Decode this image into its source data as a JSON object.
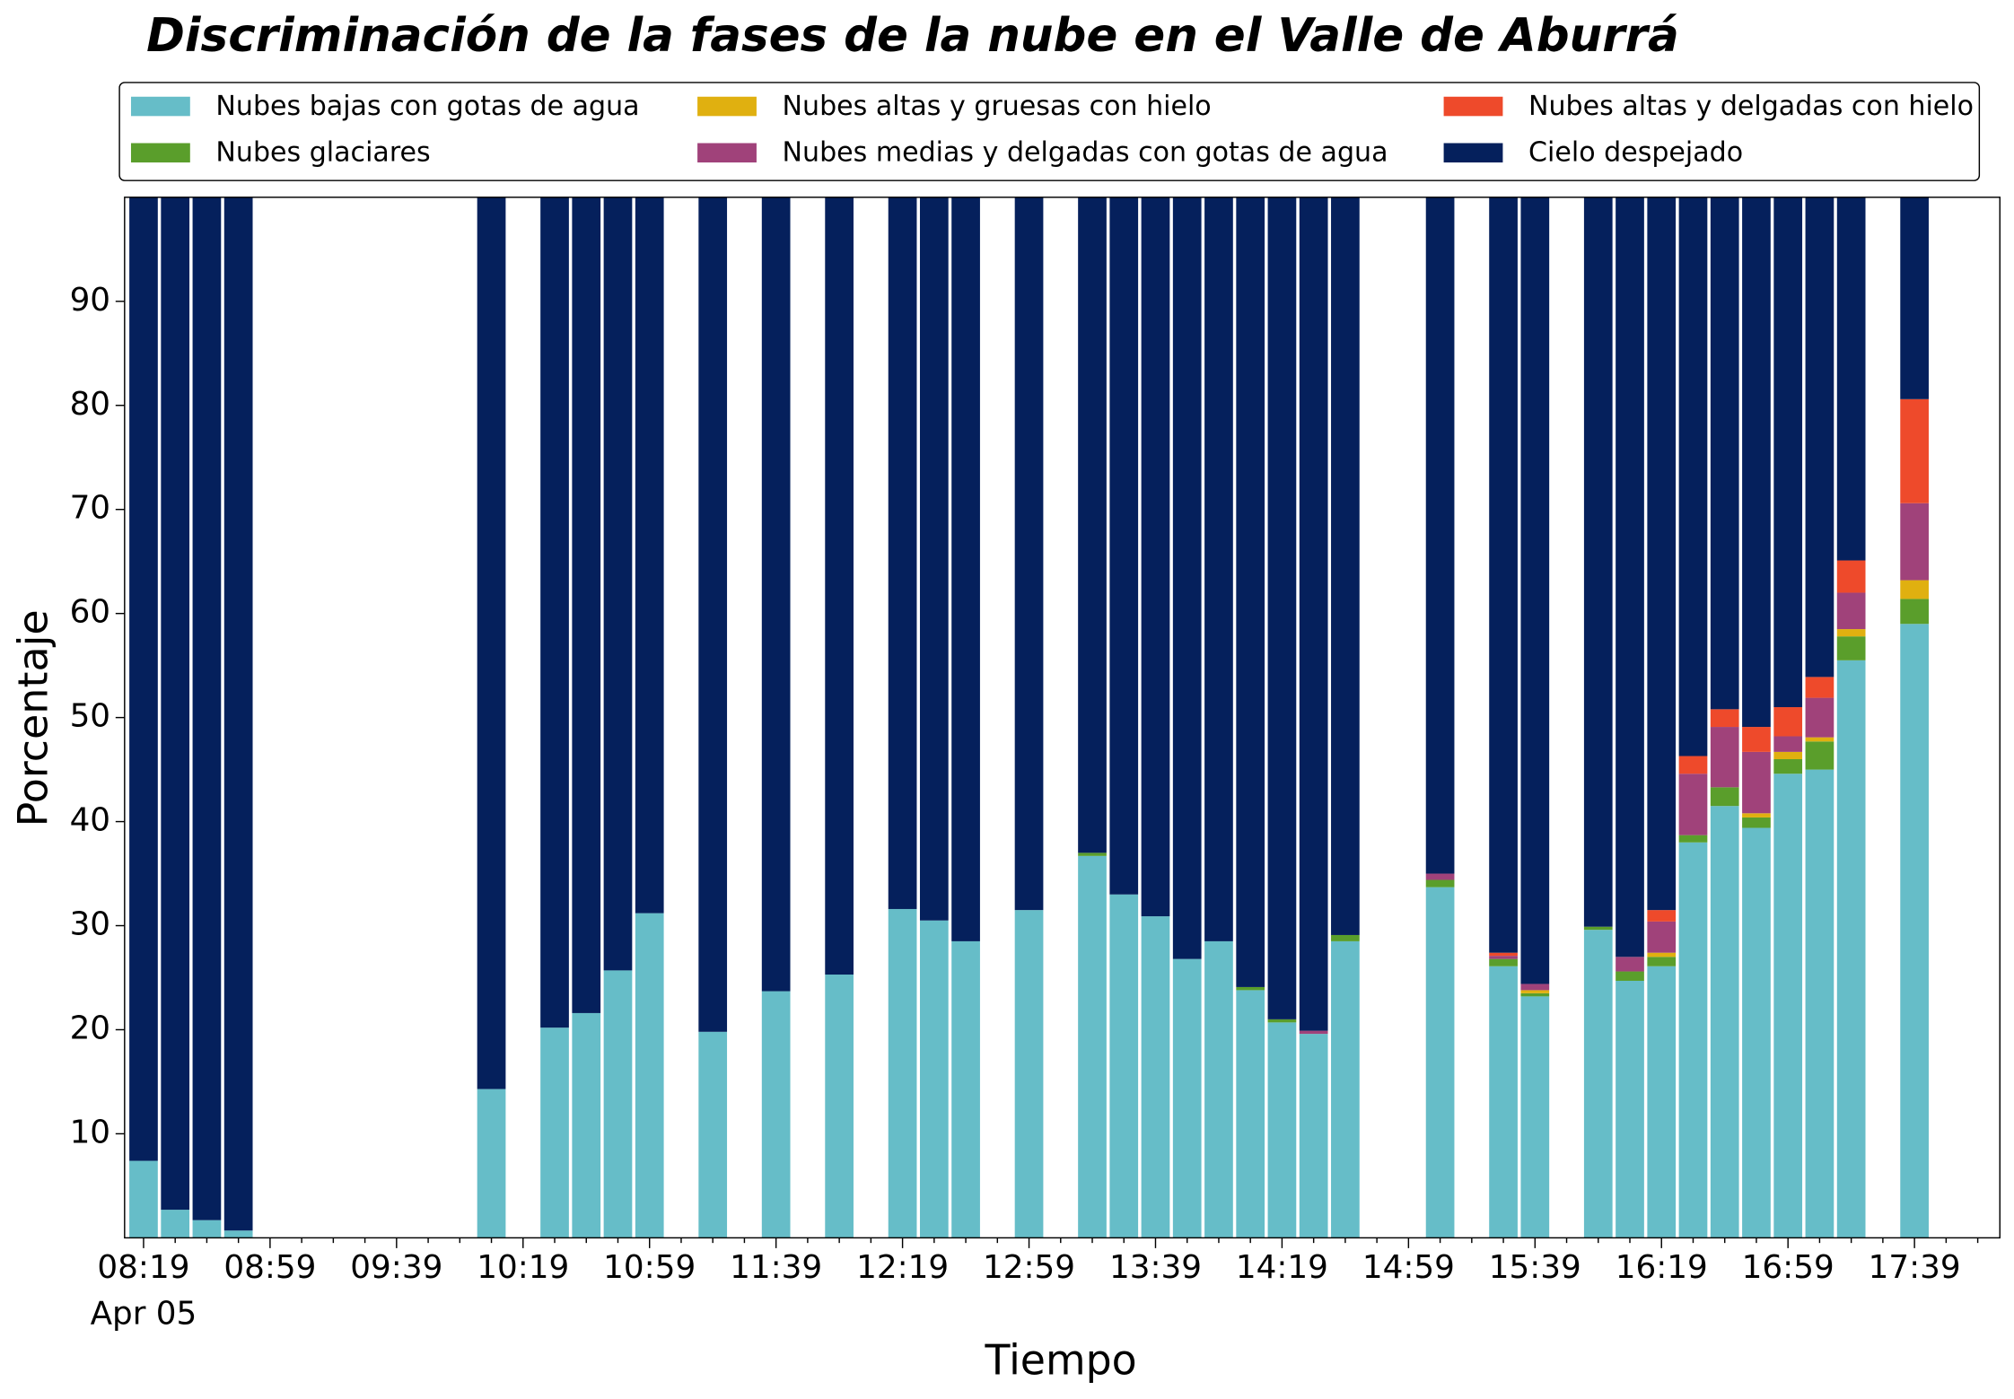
{
  "chart_data": {
    "type": "stacked_bar",
    "title": "Discriminación de la fases de la nube en el Valle de Aburrá",
    "xlabel": "Tiempo",
    "ylabel": "Porcentaje",
    "x": [
      "08:19",
      "08:29",
      "08:39",
      "08:49",
      "10:09",
      "10:29",
      "10:39",
      "10:49",
      "10:59",
      "11:19",
      "11:39",
      "11:59",
      "12:19",
      "12:29",
      "12:39",
      "12:59",
      "13:19",
      "13:29",
      "13:39",
      "13:49",
      "13:59",
      "14:09",
      "14:19",
      "14:29",
      "14:39",
      "15:09",
      "15:29",
      "15:39",
      "15:59",
      "16:09",
      "16:19",
      "16:29",
      "16:39",
      "16:49",
      "16:59",
      "17:09",
      "17:19",
      "17:39"
    ],
    "series": [
      {
        "name": "Nubes bajas con gotas de agua",
        "color": "#66bdc8",
        "values": [
          7.4,
          2.7,
          1.7,
          0.7,
          14.3,
          20.2,
          21.6,
          25.7,
          31.2,
          19.8,
          23.7,
          25.3,
          31.6,
          30.5,
          28.5,
          31.5,
          36.7,
          33.0,
          30.9,
          26.8,
          28.5,
          23.8,
          20.7,
          19.6,
          28.5,
          33.7,
          26.1,
          23.2,
          29.6,
          24.7,
          26.1,
          38.0,
          41.5,
          39.4,
          44.6,
          45.0,
          55.5,
          59.0
        ]
      },
      {
        "name": "Nubes glaciares",
        "color": "#5a9e2b",
        "values": [
          0,
          0,
          0,
          0,
          0,
          0,
          0,
          0,
          0,
          0,
          0,
          0,
          0,
          0,
          0,
          0,
          0.3,
          0,
          0,
          0,
          0,
          0.3,
          0.3,
          0,
          0.6,
          0.7,
          0.7,
          0.3,
          0.3,
          0.9,
          0.9,
          0.7,
          1.8,
          1.0,
          1.4,
          2.7,
          2.3,
          2.4
        ]
      },
      {
        "name": "Nubes altas y gruesas con hielo",
        "color": "#e0b010",
        "values": [
          0,
          0,
          0,
          0,
          0,
          0,
          0,
          0,
          0,
          0,
          0,
          0,
          0,
          0,
          0,
          0,
          0,
          0,
          0,
          0,
          0,
          0,
          0,
          0,
          0,
          0,
          0,
          0.3,
          0,
          0,
          0.4,
          0,
          0,
          0.4,
          0.7,
          0.4,
          0.7,
          1.8
        ]
      },
      {
        "name": "Nubes medias y delgadas con gotas de agua",
        "color": "#a0427a",
        "values": [
          0,
          0,
          0,
          0,
          0,
          0,
          0,
          0,
          0,
          0,
          0,
          0,
          0,
          0,
          0,
          0,
          0,
          0,
          0,
          0,
          0,
          0,
          0,
          0.3,
          0,
          0.6,
          0.3,
          0.6,
          0,
          1.4,
          3.0,
          5.9,
          5.8,
          5.9,
          1.5,
          3.8,
          3.5,
          7.4
        ]
      },
      {
        "name": "Nubes altas y delgadas con hielo",
        "color": "#ee4a2b",
        "values": [
          0,
          0,
          0,
          0,
          0,
          0,
          0,
          0,
          0,
          0,
          0,
          0,
          0,
          0,
          0,
          0,
          0,
          0,
          0,
          0,
          0,
          0,
          0,
          0,
          0,
          0,
          0.3,
          0,
          0,
          0,
          1.1,
          1.7,
          1.7,
          2.4,
          2.8,
          2.0,
          3.1,
          10.0
        ]
      },
      {
        "name": "Cielo despejado",
        "color": "#05205c",
        "values": [
          92.6,
          97.3,
          98.3,
          99.3,
          85.7,
          79.8,
          78.4,
          74.3,
          68.8,
          80.2,
          76.3,
          74.7,
          68.4,
          69.5,
          71.5,
          68.5,
          63.0,
          67.0,
          69.1,
          73.2,
          71.5,
          75.9,
          79.0,
          80.1,
          70.9,
          65.0,
          72.6,
          75.6,
          70.1,
          73.0,
          68.5,
          53.7,
          49.2,
          50.9,
          49.0,
          46.1,
          34.9,
          19.4
        ]
      }
    ],
    "xlim": [
      "08:13",
      "18:06"
    ],
    "xticks": [
      "08:19",
      "08:59",
      "09:39",
      "10:19",
      "10:59",
      "11:39",
      "12:19",
      "12:59",
      "13:39",
      "14:19",
      "14:59",
      "15:39",
      "16:19",
      "16:59",
      "17:39"
    ],
    "xtick_date": "Apr 05",
    "xminorticks": [
      "08:29",
      "08:39",
      "08:49",
      "09:09",
      "09:19",
      "09:29",
      "09:49",
      "09:59",
      "10:09",
      "10:29",
      "10:39",
      "10:49",
      "11:09",
      "11:19",
      "11:29",
      "11:49",
      "11:59",
      "12:09",
      "12:29",
      "12:39",
      "12:49",
      "13:09",
      "13:19",
      "13:29",
      "13:49",
      "13:59",
      "14:09",
      "14:29",
      "14:39",
      "14:49",
      "15:09",
      "15:19",
      "15:29",
      "15:49",
      "15:59",
      "16:09",
      "16:29",
      "16:39",
      "16:49",
      "17:09",
      "17:19",
      "17:29",
      "17:49",
      "17:59"
    ],
    "ylim": [
      0,
      100
    ],
    "yticks": [
      10,
      20,
      30,
      40,
      50,
      60,
      70,
      80,
      90
    ],
    "legend": "top",
    "legend_columns": 3
  }
}
